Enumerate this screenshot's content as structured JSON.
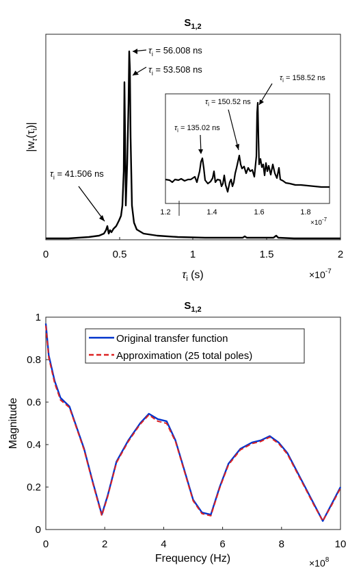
{
  "chart_data": [
    {
      "type": "line",
      "title_main": "S",
      "title_sub": "1,2",
      "ylabel_main": "|w",
      "ylabel_sub": "τ",
      "ylabel_mid": "(τ",
      "ylabel_sub2": "i",
      "ylabel_end": ")|",
      "xlabel_main": "τ",
      "xlabel_sub": "i",
      "xlabel_end": " (s)",
      "x_multiplier_base": "×10",
      "x_multiplier_exp": "-7",
      "xlim": [
        0,
        2
      ],
      "ylim": [
        0,
        1
      ],
      "xticks": [
        "0",
        "0.5",
        "1",
        "1.5",
        "2"
      ],
      "line_color": "#000000",
      "peaks": [
        {
          "x": 0.41506,
          "y": 0.06
        },
        {
          "x": 0.53508,
          "y": 0.84
        },
        {
          "x": 0.56008,
          "y": 1.0
        },
        {
          "x": 1.3502,
          "y": 0.02
        },
        {
          "x": 1.5052,
          "y": 0.03
        },
        {
          "x": 1.5852,
          "y": 0.04
        }
      ],
      "annotations": [
        {
          "sym": "τ",
          "sub": "i",
          "text": " = 56.008 ns"
        },
        {
          "sym": "τ",
          "sub": "i",
          "text": " = 53.508 ns"
        },
        {
          "sym": "τ",
          "sub": "i",
          "text": " = 41.506 ns"
        }
      ],
      "inset": {
        "xlim": [
          1.2,
          1.9
        ],
        "xticks": [
          "1.2",
          "1.4",
          "1.6",
          "1.8"
        ],
        "x_multiplier_base": "×10",
        "x_multiplier_exp": "-7",
        "annotations": [
          {
            "sym": "τ",
            "sub": "i",
            "text": " = 158.52 ns"
          },
          {
            "sym": "τ",
            "sub": "i",
            "text": " = 150.52 ns"
          },
          {
            "sym": "τ",
            "sub": "i",
            "text": " = 135.02 ns"
          }
        ],
        "peaks": [
          {
            "x": 1.3502,
            "y": 0.6
          },
          {
            "x": 1.5052,
            "y": 0.55
          },
          {
            "x": 1.5852,
            "y": 1.0
          }
        ]
      }
    },
    {
      "type": "line",
      "title_main": "S",
      "title_sub": "1,2",
      "xlabel": "Frequency (Hz)",
      "ylabel": "Magnitude",
      "x_multiplier_base": "×10",
      "x_multiplier_exp": "8",
      "xlim": [
        0,
        10
      ],
      "ylim": [
        0,
        1
      ],
      "xticks": [
        "0",
        "2",
        "4",
        "6",
        "8",
        "10"
      ],
      "yticks": [
        "0",
        "0.2",
        "0.4",
        "0.6",
        "0.8",
        "1"
      ],
      "legend_position": "top",
      "series": [
        {
          "name": "Original transfer function",
          "color": "#0033cc",
          "x": [
            0,
            0.1,
            0.3,
            0.5,
            0.8,
            1.0,
            1.3,
            1.6,
            1.9,
            2.1,
            2.4,
            2.8,
            3.2,
            3.5,
            3.8,
            4.1,
            4.4,
            4.7,
            5.0,
            5.3,
            5.6,
            5.9,
            6.2,
            6.6,
            7.0,
            7.3,
            7.6,
            7.9,
            8.2,
            8.5,
            8.8,
            9.1,
            9.4,
            9.7,
            10.0
          ],
          "y": [
            0.97,
            0.82,
            0.7,
            0.62,
            0.58,
            0.5,
            0.38,
            0.22,
            0.07,
            0.16,
            0.32,
            0.42,
            0.5,
            0.545,
            0.52,
            0.51,
            0.42,
            0.28,
            0.14,
            0.08,
            0.07,
            0.2,
            0.31,
            0.38,
            0.41,
            0.42,
            0.44,
            0.41,
            0.36,
            0.28,
            0.2,
            0.12,
            0.04,
            0.12,
            0.2
          ]
        },
        {
          "name": "Approximation (25 total poles)",
          "color": "#dd2222",
          "x": [
            0,
            0.1,
            0.3,
            0.5,
            0.8,
            1.0,
            1.3,
            1.6,
            1.9,
            2.1,
            2.4,
            2.8,
            3.2,
            3.5,
            3.8,
            4.1,
            4.4,
            4.7,
            5.0,
            5.3,
            5.6,
            5.9,
            6.2,
            6.6,
            7.0,
            7.3,
            7.6,
            7.9,
            8.2,
            8.5,
            8.8,
            9.1,
            9.4,
            9.7,
            10.0
          ],
          "y": [
            0.96,
            0.81,
            0.69,
            0.61,
            0.575,
            0.495,
            0.375,
            0.215,
            0.065,
            0.155,
            0.315,
            0.415,
            0.495,
            0.54,
            0.51,
            0.5,
            0.415,
            0.275,
            0.135,
            0.075,
            0.065,
            0.195,
            0.305,
            0.375,
            0.405,
            0.415,
            0.435,
            0.405,
            0.355,
            0.275,
            0.195,
            0.115,
            0.04,
            0.115,
            0.195
          ]
        }
      ]
    }
  ]
}
